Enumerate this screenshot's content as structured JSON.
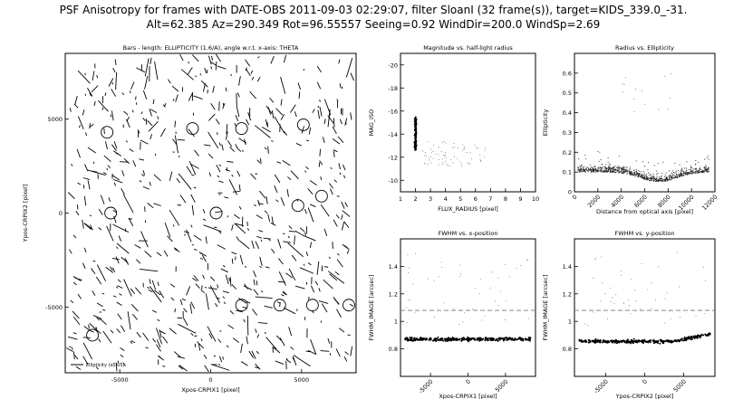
{
  "figure": {
    "title_line1": "PSF Anisotropy for frames with DATE-OBS 2011-09-03 02:29:07, filter SloanI (32 frame(s)), target=KIDS_339.0_-31.",
    "title_line2": "Alt=62.385 Az=290.349 Rot=96.55557 Seeing=0.92 WindDir=200.0 WindSp=2.69"
  },
  "chart_data": [
    {
      "id": "whisker",
      "type": "scatter",
      "title": "Bars - length: ELLIPTICITY (1.6/A), angle w.r.t. x-axis: THETA",
      "xlabel": "Xpos-CRPIX1 [pixel]",
      "ylabel": "Ypos-CRPIX2 [pixel]",
      "xlim": [
        -8000,
        8000
      ],
      "ylim": [
        -8500,
        8500
      ],
      "xticks": [
        -5000,
        0,
        5000
      ],
      "yticks": [
        -5000,
        0,
        5000
      ],
      "legend": "Ellipticity (x0.05)",
      "legend_position": "bottom-left",
      "circles": [
        {
          "x": -1000,
          "y": 4500
        },
        {
          "x": 1700,
          "y": 4500
        },
        {
          "x": 5100,
          "y": 4700
        },
        {
          "x": -5700,
          "y": 4300
        },
        {
          "x": -5500,
          "y": 0
        },
        {
          "x": 300,
          "y": 0
        },
        {
          "x": 4800,
          "y": 400
        },
        {
          "x": 6100,
          "y": 900
        },
        {
          "x": 1700,
          "y": -4900
        },
        {
          "x": 3800,
          "y": -4900
        },
        {
          "x": 5600,
          "y": -4900
        },
        {
          "x": 7600,
          "y": -4900
        },
        {
          "x": -6500,
          "y": -6500
        }
      ]
    },
    {
      "id": "mag-radius",
      "type": "scatter",
      "title": "Magnitude vs. half-light radius",
      "xlabel": "FLUX_RADIUS [pixel]",
      "ylabel": "MAG_ISO",
      "xlim": [
        1,
        10
      ],
      "ylim": [
        -9,
        -21
      ],
      "xticks": [
        1,
        2,
        3,
        4,
        5,
        6,
        7,
        8,
        9,
        10
      ],
      "yticks": [
        -10,
        -12,
        -14,
        -16,
        -18,
        -20
      ],
      "series": [
        {
          "values": [
            [
              2.0,
              -13.0
            ],
            [
              2.0,
              -14.0
            ],
            [
              2.0,
              -15.0
            ],
            [
              2.1,
              -15.3
            ],
            [
              2.1,
              -12.8
            ]
          ]
        },
        {
          "values": [
            [
              3.3,
              -12.2
            ],
            [
              4.0,
              -11.8
            ],
            [
              4.6,
              -12.5
            ],
            [
              5.2,
              -12.0
            ],
            [
              5.8,
              -12.8
            ]
          ]
        }
      ]
    },
    {
      "id": "radius-ellipticity",
      "type": "scatter",
      "title": "Radius vs. Ellipticity",
      "xlabel": "Distance from optical axis [pixel]",
      "ylabel": "Ellipticity",
      "xlim": [
        0,
        12000
      ],
      "ylim": [
        0,
        0.7
      ],
      "xticks": [
        0,
        2000,
        4000,
        6000,
        8000,
        10000,
        12000
      ],
      "yticks": [
        0,
        0.1,
        0.2,
        0.3,
        0.4,
        0.5,
        0.6
      ],
      "series": [
        {
          "values": [
            [
              1000,
              0.1
            ],
            [
              3000,
              0.09
            ],
            [
              5000,
              0.08
            ],
            [
              7000,
              0.05
            ],
            [
              9000,
              0.06
            ],
            [
              11000,
              0.08
            ]
          ]
        }
      ]
    },
    {
      "id": "fwhm-x",
      "type": "scatter",
      "title": "FWHM vs. x-position",
      "xlabel": "Xpos-CRPIX1 [pixel]",
      "ylabel": "FWHM_IMAGE [arcsec]",
      "xlim": [
        -9000,
        9000
      ],
      "ylim": [
        0.6,
        1.6
      ],
      "xticks": [
        -5000,
        0,
        5000
      ],
      "yticks": [
        0.8,
        1.0,
        1.2,
        1.4
      ],
      "reference_y": 1.08,
      "series": [
        {
          "values": [
            [
              -8000,
              0.87
            ],
            [
              -4000,
              0.87
            ],
            [
              0,
              0.87
            ],
            [
              4000,
              0.87
            ],
            [
              8000,
              0.87
            ]
          ]
        }
      ]
    },
    {
      "id": "fwhm-y",
      "type": "scatter",
      "title": "FWHM vs. y-position",
      "xlabel": "Ypos-CRPIX2 [pixel]",
      "ylabel": "FWHM_IMAGE [arcsec]",
      "xlim": [
        -9000,
        9000
      ],
      "ylim": [
        0.6,
        1.6
      ],
      "xticks": [
        -5000,
        0,
        5000
      ],
      "yticks": [
        0.8,
        1.0,
        1.2,
        1.4
      ],
      "reference_y": 1.08,
      "series": [
        {
          "values": [
            [
              -8000,
              0.86
            ],
            [
              -4000,
              0.85
            ],
            [
              0,
              0.86
            ],
            [
              4000,
              0.87
            ],
            [
              8000,
              0.92
            ]
          ]
        }
      ]
    }
  ]
}
